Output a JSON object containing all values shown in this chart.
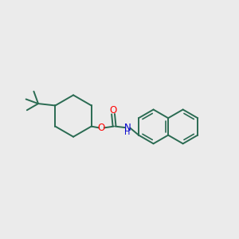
{
  "bg_color": "#ebebeb",
  "bond_color": "#2a6b52",
  "atom_colors": {
    "O": "#ff0000",
    "N": "#0000cc"
  },
  "bond_lw": 1.4,
  "inner_lw": 1.2
}
